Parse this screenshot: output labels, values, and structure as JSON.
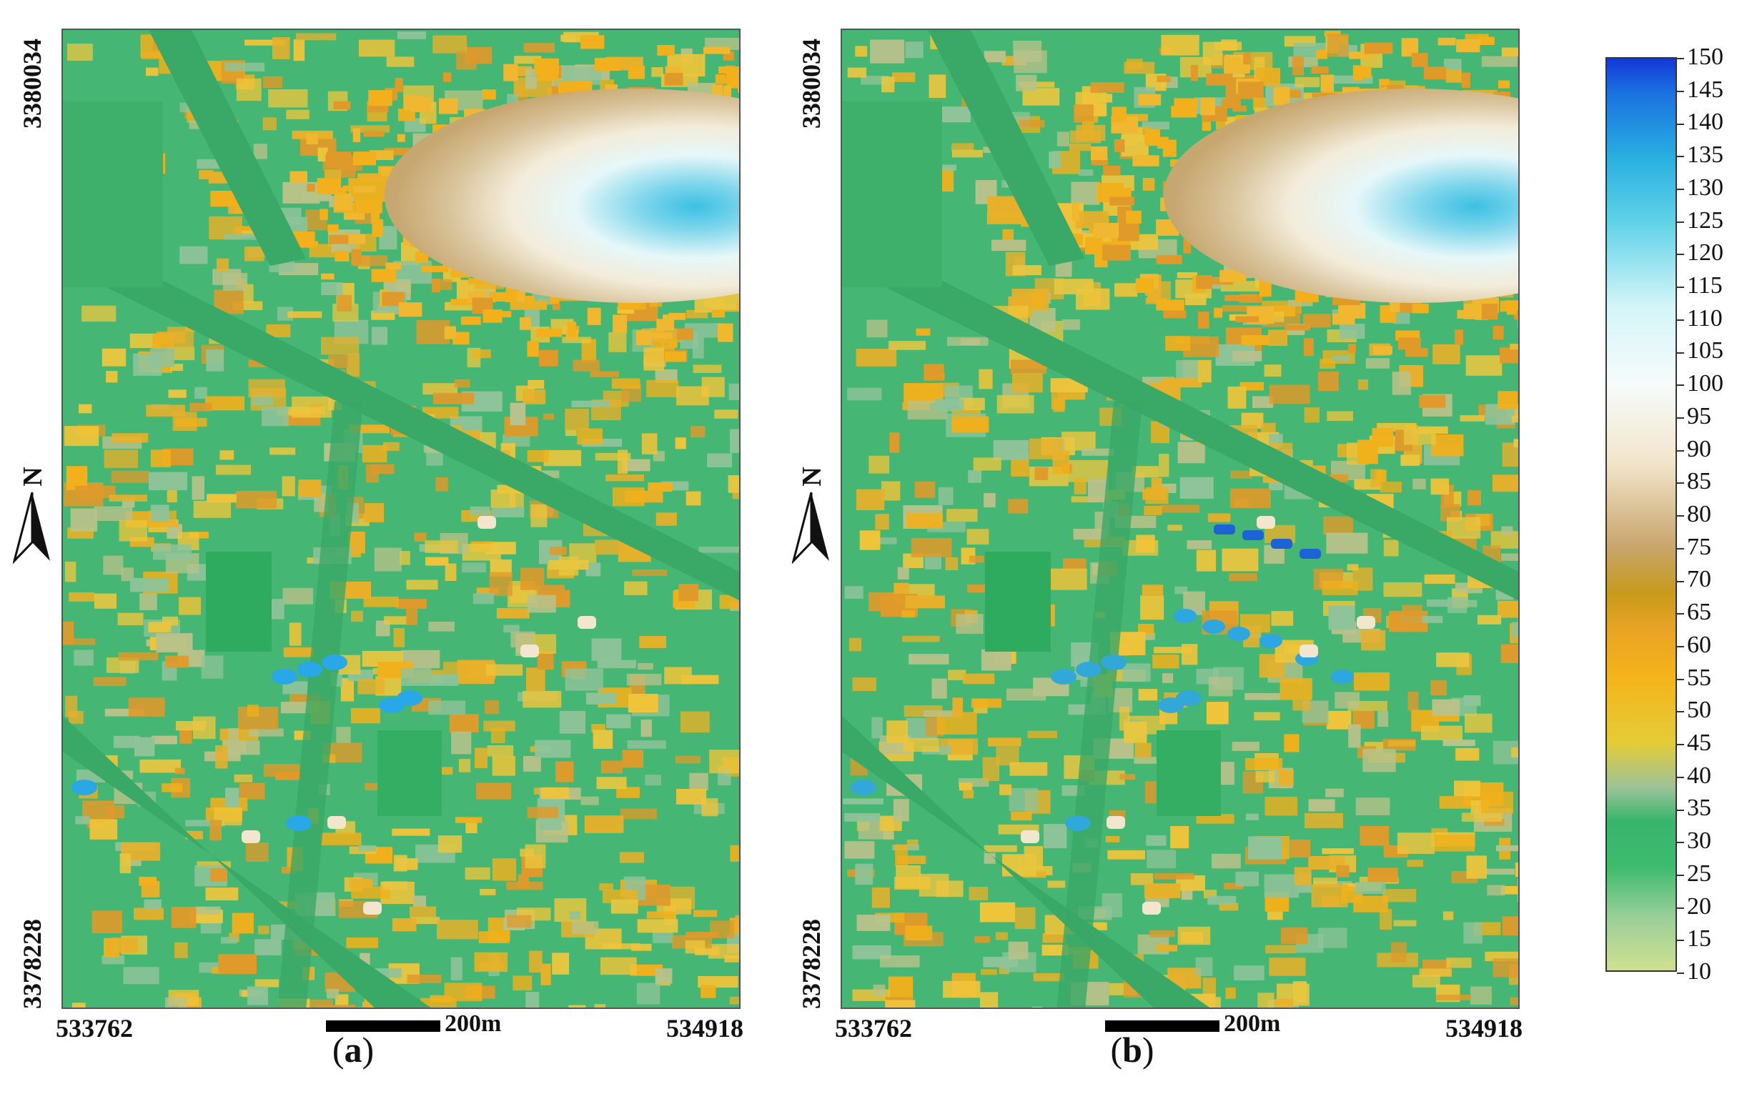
{
  "panels": [
    {
      "id": "a",
      "label_open": "(",
      "label_letter": "a",
      "label_close": ")",
      "coords": {
        "lat_top": "3380034",
        "lat_bottom": "3378228",
        "lon_left": "533762",
        "lon_right": "534918"
      },
      "north_label": "N",
      "scale_label": "200m",
      "pool_color": "#2aa7e6",
      "has_blue_roofs": false
    },
    {
      "id": "b",
      "label_open": "(",
      "label_letter": "b",
      "label_close": ")",
      "coords": {
        "lat_top": "3380034",
        "lat_bottom": "3378228",
        "lon_left": "533762",
        "lon_right": "534918"
      },
      "north_label": "N",
      "scale_label": "200m",
      "pool_color": "#32a8d8",
      "has_blue_roofs": true
    }
  ],
  "colorbar": {
    "min": 10,
    "max": 150,
    "ticks": [
      "150",
      "145",
      "140",
      "135",
      "130",
      "125",
      "120",
      "115",
      "110",
      "105",
      "100",
      "95",
      "90",
      "85",
      "80",
      "75",
      "70",
      "65",
      "60",
      "55",
      "50",
      "45",
      "40",
      "35",
      "30",
      "25",
      "20",
      "15",
      "10"
    ],
    "stops": [
      {
        "value": 10,
        "color": "#cfe08e"
      },
      {
        "value": 18,
        "color": "#9ccf9a"
      },
      {
        "value": 26,
        "color": "#3dbb6f"
      },
      {
        "value": 33,
        "color": "#39b56c"
      },
      {
        "value": 38,
        "color": "#9cc29a"
      },
      {
        "value": 45,
        "color": "#e5cc37"
      },
      {
        "value": 55,
        "color": "#f4b41a"
      },
      {
        "value": 62,
        "color": "#eaa424"
      },
      {
        "value": 68,
        "color": "#c89a1c"
      },
      {
        "value": 75,
        "color": "#c8a56c"
      },
      {
        "value": 88,
        "color": "#f3e5cc"
      },
      {
        "value": 100,
        "color": "#f6fbfb"
      },
      {
        "value": 112,
        "color": "#d4f5f8"
      },
      {
        "value": 125,
        "color": "#5fd2e8"
      },
      {
        "value": 135,
        "color": "#28aee0"
      },
      {
        "value": 145,
        "color": "#1a6fe0"
      },
      {
        "value": 150,
        "color": "#1238d6"
      }
    ]
  },
  "map_colors": {
    "ground": "#45b673",
    "road": "#3aa866",
    "grass_light": "#8fc39a",
    "building_low": "#e9c640",
    "building_mid": "#f1b01c",
    "building_high": "#e09a2a",
    "water_edge": "#c7a770",
    "water_mid": "#f3ecda",
    "water_center": "#e6f7f9",
    "water_deep": "#3cc0e3",
    "tall_roof": "#1e63d6"
  }
}
